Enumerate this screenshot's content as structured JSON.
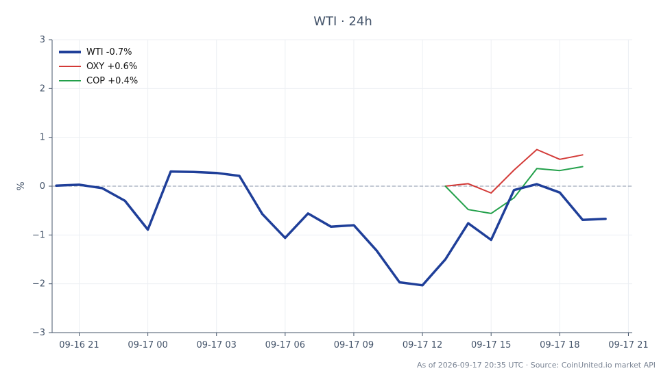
{
  "chart_data": {
    "type": "line",
    "title": "WTI · 24h",
    "xlabel": "",
    "ylabel": "%",
    "x_ticks": [
      "09-16 21",
      "09-17 00",
      "09-17 03",
      "09-17 06",
      "09-17 09",
      "09-17 12",
      "09-17 15",
      "09-17 18",
      "09-17 21"
    ],
    "y_ticks": [
      "3",
      "2",
      "1",
      "0",
      "−1",
      "−2",
      "−3"
    ],
    "xlim": [
      "2026-09-16 19:49",
      "2026-09-17 21:10"
    ],
    "ylim": [
      -3,
      3
    ],
    "grid": true,
    "baseline": 0,
    "legend_position": "top-left",
    "series": [
      {
        "name": "WTI -0.7%",
        "color": "#1f3f99",
        "x": [
          "2026-09-16 20:00",
          "2026-09-16 21:00",
          "2026-09-16 22:00",
          "2026-09-16 23:00",
          "2026-09-17 00:00",
          "2026-09-17 01:00",
          "2026-09-17 02:00",
          "2026-09-17 03:00",
          "2026-09-17 04:00",
          "2026-09-17 05:00",
          "2026-09-17 06:00",
          "2026-09-17 07:00",
          "2026-09-17 08:00",
          "2026-09-17 09:00",
          "2026-09-17 10:00",
          "2026-09-17 11:00",
          "2026-09-17 12:00",
          "2026-09-17 13:00",
          "2026-09-17 14:00",
          "2026-09-17 15:00",
          "2026-09-17 16:00",
          "2026-09-17 17:00",
          "2026-09-17 18:00",
          "2026-09-17 19:00",
          "2026-09-17 20:00"
        ],
        "values": [
          0.01,
          0.03,
          -0.04,
          -0.3,
          -0.89,
          0.3,
          0.29,
          0.27,
          0.21,
          -0.57,
          -1.06,
          -0.56,
          -0.83,
          -0.8,
          -1.32,
          -1.97,
          -2.03,
          -1.5,
          -0.76,
          -1.1,
          -0.08,
          0.04,
          -0.13,
          -0.69,
          -0.67
        ]
      },
      {
        "name": "OXY +0.6%",
        "color": "#d33a37",
        "x": [
          "2026-09-17 13:00",
          "2026-09-17 14:00",
          "2026-09-17 15:00",
          "2026-09-17 16:00",
          "2026-09-17 17:00",
          "2026-09-17 18:00",
          "2026-09-17 19:00"
        ],
        "values": [
          0.0,
          0.05,
          -0.14,
          0.33,
          0.75,
          0.55,
          0.64
        ]
      },
      {
        "name": "COP +0.4%",
        "color": "#22a04a",
        "x": [
          "2026-09-17 13:00",
          "2026-09-17 14:00",
          "2026-09-17 15:00",
          "2026-09-17 16:00",
          "2026-09-17 17:00",
          "2026-09-17 18:00",
          "2026-09-17 19:00"
        ],
        "values": [
          0.0,
          -0.48,
          -0.56,
          -0.24,
          0.36,
          0.32,
          0.4
        ]
      }
    ]
  },
  "footer_text": "As of 2026-09-17 20:35 UTC · Source: CoinUnited.io market API"
}
